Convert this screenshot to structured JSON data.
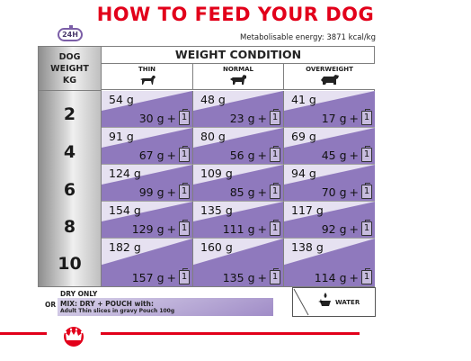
{
  "title": "HOW TO FEED YOUR DOG",
  "badge": "24H",
  "energy": "Metabolisable energy: 3871 kcal/kg",
  "table": {
    "dog_header": [
      "DOG",
      "WEIGHT",
      "KG"
    ],
    "weight_condition": "WEIGHT CONDITION",
    "columns": [
      "THIN",
      "NORMAL",
      "OVERWEIGHT"
    ],
    "rows": [
      {
        "kg": "2",
        "cells": [
          {
            "dry": "54 g",
            "mix": "30 g",
            "pouch": "1"
          },
          {
            "dry": "48 g",
            "mix": "23 g",
            "pouch": "1"
          },
          {
            "dry": "41 g",
            "mix": "17 g",
            "pouch": "1"
          }
        ]
      },
      {
        "kg": "4",
        "cells": [
          {
            "dry": "91 g",
            "mix": "67 g",
            "pouch": "1"
          },
          {
            "dry": "80 g",
            "mix": "56 g",
            "pouch": "1"
          },
          {
            "dry": "69 g",
            "mix": "45 g",
            "pouch": "1"
          }
        ]
      },
      {
        "kg": "6",
        "cells": [
          {
            "dry": "124 g",
            "mix": "99 g",
            "pouch": "1"
          },
          {
            "dry": "109 g",
            "mix": "85 g",
            "pouch": "1"
          },
          {
            "dry": "94 g",
            "mix": "70 g",
            "pouch": "1"
          }
        ]
      },
      {
        "kg": "8",
        "cells": [
          {
            "dry": "154 g",
            "mix": "129 g",
            "pouch": "1"
          },
          {
            "dry": "135 g",
            "mix": "111 g",
            "pouch": "1"
          },
          {
            "dry": "117 g",
            "mix": "92 g",
            "pouch": "1"
          }
        ]
      },
      {
        "kg": "10",
        "cells": [
          {
            "dry": "182 g",
            "mix": "157 g",
            "pouch": "1"
          },
          {
            "dry": "160 g",
            "mix": "135 g",
            "pouch": "1"
          },
          {
            "dry": "138 g",
            "mix": "114 g",
            "pouch": "1"
          }
        ]
      }
    ]
  },
  "legend": {
    "dry_only": "DRY ONLY",
    "or": "OR",
    "mix": "MIX: DRY + POUCH with:",
    "mix_sub": "Adult Thin slices in gravy Pouch 100g",
    "water": "WATER"
  },
  "colors": {
    "brand_red": "#e2001a",
    "purple_dark": "#8f79bd",
    "purple_light": "#e6e1f1"
  }
}
